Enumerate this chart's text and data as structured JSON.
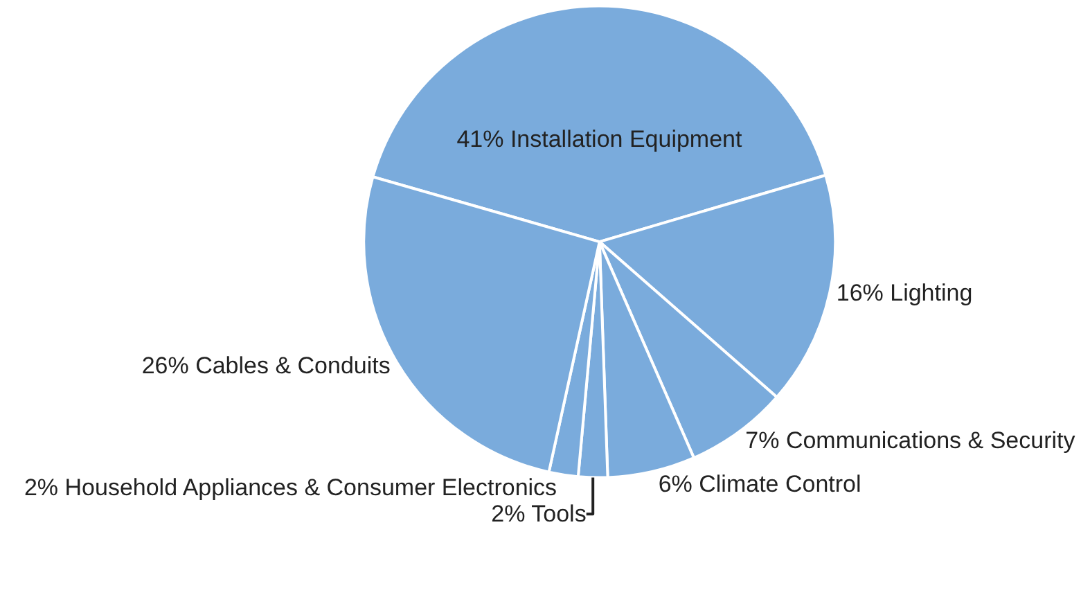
{
  "chart_data": {
    "type": "pie",
    "categories": [
      "Installation Equipment",
      "Lighting",
      "Communications & Security",
      "Climate Control",
      "Tools",
      "Household Appliances & Consumer Electronics",
      "Cables & Conduits"
    ],
    "values": [
      41,
      16,
      7,
      6,
      2,
      2,
      26
    ],
    "value_labels": [
      "41%",
      "16%",
      "7%",
      "6%",
      "2%",
      "2%",
      "26%"
    ],
    "colors": [
      "#7aabdc",
      "#7aabdc",
      "#7aabdc",
      "#7aabdc",
      "#7aabdc",
      "#7aabdc",
      "#7aabdc"
    ],
    "legend": false
  }
}
